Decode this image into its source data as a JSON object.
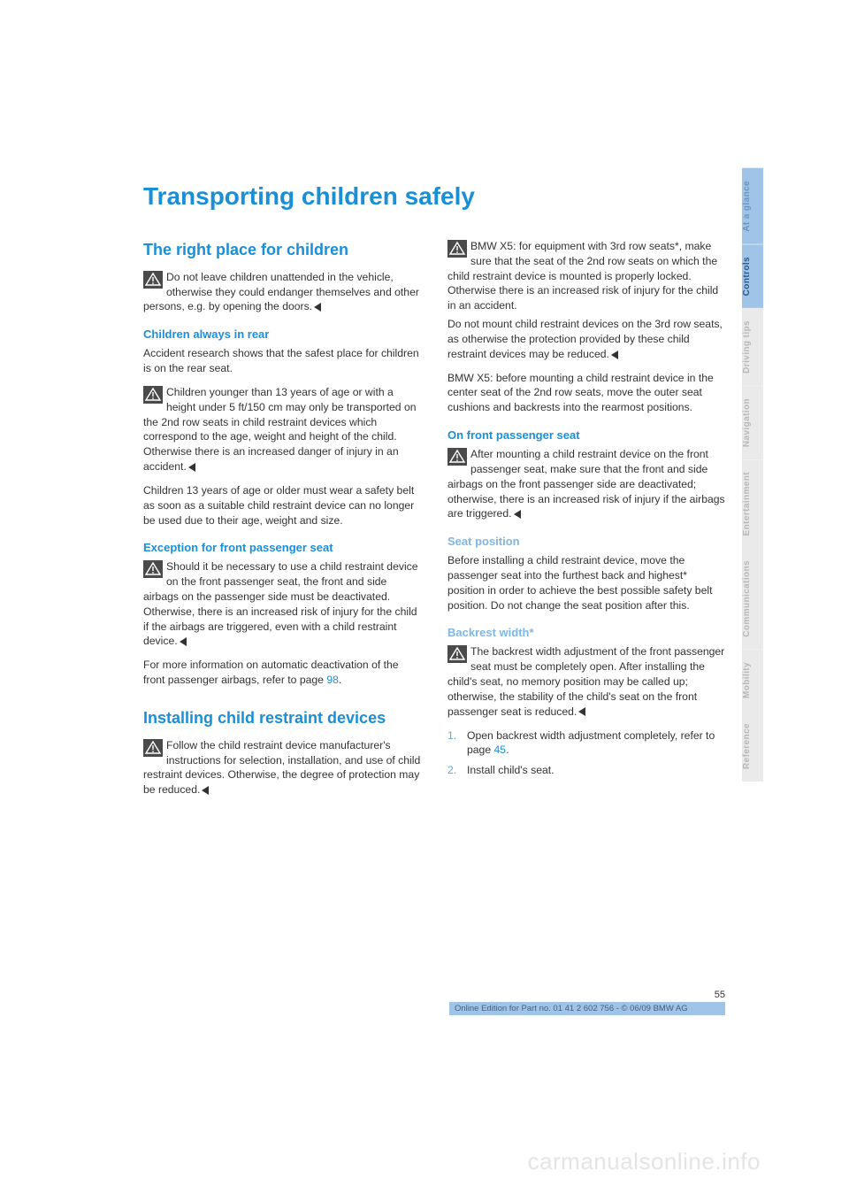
{
  "colors": {
    "primary_blue": "#1a8fd6",
    "light_blue": "#7fb7e4",
    "tab_highlight_bg": "#9fc4e7",
    "tab_highlight_fg": "#2a5a8a",
    "tab_dim_bg": "#eaeaea",
    "tab_dim_fg": "#b8b8b8",
    "body_text": "#333333",
    "watermark": "#e4e4e4",
    "warn_icon_bg": "#4a4a4a",
    "list_num": "#5aa9dc"
  },
  "title": "Transporting children safely",
  "left": {
    "h2_1": "The right place for children",
    "p1": "Do not leave children unattended in the vehicle, otherwise they could endanger themselves and other persons, e.g. by opening the doors.",
    "h3_1": "Children always in rear",
    "p2": "Accident research shows that the safest place for children is on the rear seat.",
    "p3": "Children younger than 13 years of age or with a height under 5 ft/150 cm may only be transported on the 2nd row seats in child restraint devices which correspond to the age, weight and height of the child. Otherwise there is an increased danger of injury in an accident.",
    "p4": "Children 13 years of age or older must wear a safety belt as soon as a suitable child restraint device can no longer be used due to their age, weight and size.",
    "h3_2": "Exception for front passenger seat",
    "p5": "Should it be necessary to use a child restraint device on the front passenger seat, the front and side airbags on the passenger side must be deactivated. Otherwise, there is an increased risk of injury for the child if the airbags are triggered, even with a child restraint device.",
    "p6a": "For more information on automatic deactivation of the front passenger airbags, refer to page ",
    "p6b": "98",
    "p6c": ".",
    "h2_2": "Installing child restraint devices",
    "p7": "Follow the child restraint device manufacturer's instructions for selection, installation, and use of child restraint devices. Otherwise, the degree of protection may be reduced."
  },
  "right": {
    "p1": "BMW X5: for equipment with 3rd row seats*, make sure that the seat of the 2nd row seats on which the child restraint device is mounted is properly locked. Otherwise there is an increased risk of injury for the child in an accident.",
    "p2": "Do not mount child restraint devices on the 3rd row seats, as otherwise the protection provided by these child restraint devices may be reduced.",
    "p3": "BMW X5: before mounting a child restraint device in the center seat of the 2nd row seats, move the outer seat cushions and backrests into the rearmost positions.",
    "h3_1": "On front passenger seat",
    "p4": "After mounting a child restraint device on the front passenger seat, make sure that the front and side airbags on the front passenger side are deactivated; otherwise, there is an increased risk of injury if the airbags are triggered.",
    "h4_1": "Seat position",
    "p5": "Before installing a child restraint device, move the passenger seat into the furthest back and highest* position in order to achieve the best possible safety belt position. Do not change the seat position after this.",
    "h4_2": "Backrest width*",
    "p6": "The backrest width adjustment of the front passenger seat must be completely open. After installing the child's seat, no memory position may be called up; otherwise, the stability of the child's seat on the front passenger seat is reduced.",
    "li1_num": "1.",
    "li1a": "Open backrest width adjustment completely, refer to page ",
    "li1b": "45",
    "li1c": ".",
    "li2_num": "2.",
    "li2": "Install child's seat."
  },
  "tabs": [
    {
      "label": "At a glance",
      "active": false,
      "highlight": true
    },
    {
      "label": "Controls",
      "active": true,
      "highlight": true
    },
    {
      "label": "Driving tips",
      "active": false,
      "highlight": false
    },
    {
      "label": "Navigation",
      "active": false,
      "highlight": false
    },
    {
      "label": "Entertainment",
      "active": false,
      "highlight": false
    },
    {
      "label": "Communications",
      "active": false,
      "highlight": false
    },
    {
      "label": "Mobility",
      "active": false,
      "highlight": false
    },
    {
      "label": "Reference",
      "active": false,
      "highlight": false
    }
  ],
  "footer": {
    "page_number": "55",
    "edition_line": "Online Edition for Part no. 01 41 2 602 756 - © 06/09 BMW AG"
  },
  "watermark": "carmanualsonline.info"
}
